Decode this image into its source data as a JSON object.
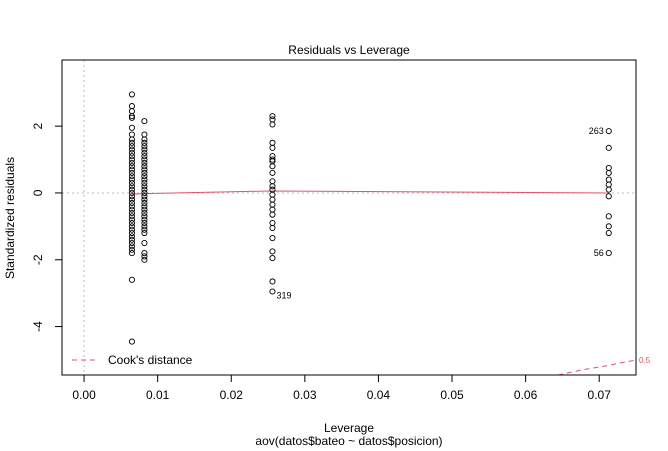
{
  "chart_data": {
    "type": "scatter",
    "title": "Residuals vs Leverage",
    "xlabel": "Leverage",
    "ylabel": "Standardized residuals",
    "subtitle": "aov(datos$bateo ~ datos$posicion)",
    "xlim": [
      -0.003,
      0.075
    ],
    "ylim": [
      -5.45,
      3.98
    ],
    "x_ticks": [
      0.0,
      0.01,
      0.02,
      0.03,
      0.04,
      0.05,
      0.06,
      0.07
    ],
    "x_tick_labels": [
      "0.00",
      "0.01",
      "0.02",
      "0.03",
      "0.04",
      "0.05",
      "0.06",
      "0.07"
    ],
    "y_ticks": [
      -4,
      -2,
      0,
      2
    ],
    "y_tick_labels": [
      "-4",
      "-2",
      "0",
      "2"
    ],
    "colors": {
      "points": "#000000",
      "smooth": "#DF536B",
      "cook": "#DF536B",
      "reference": "#BEBEBE"
    },
    "series": [
      {
        "x": 0.0065,
        "y": [
          2.95,
          2.6,
          2.45,
          2.3,
          2.25,
          1.95,
          1.75,
          1.6,
          1.5,
          1.4,
          1.3,
          1.2,
          1.1,
          1.0,
          0.9,
          0.8,
          0.7,
          0.6,
          0.5,
          0.4,
          0.3,
          0.2,
          0.1,
          0.0,
          -0.1,
          -0.2,
          -0.3,
          -0.4,
          -0.5,
          -0.6,
          -0.7,
          -0.8,
          -0.9,
          -1.0,
          -1.1,
          -1.2,
          -1.3,
          -1.4,
          -1.5,
          -1.6,
          -1.7,
          -1.8,
          -2.6,
          -4.45
        ]
      },
      {
        "x": 0.0082,
        "y": [
          2.15,
          1.75,
          1.6,
          1.5,
          1.4,
          1.3,
          1.2,
          1.1,
          1.0,
          0.9,
          0.8,
          0.7,
          0.6,
          0.5,
          0.4,
          0.3,
          0.2,
          0.1,
          0.0,
          -0.1,
          -0.2,
          -0.3,
          -0.4,
          -0.5,
          -0.6,
          -0.7,
          -0.8,
          -0.9,
          -1.0,
          -1.1,
          -1.2,
          -1.5,
          -1.8,
          -1.9,
          -2.0
        ]
      },
      {
        "x": 0.0256,
        "y": [
          2.3,
          2.2,
          2.05,
          1.5,
          1.35,
          1.1,
          1.0,
          0.95,
          0.8,
          0.6,
          0.35,
          0.2,
          0.1,
          -0.05,
          -0.2,
          -0.35,
          -0.5,
          -0.65,
          -0.9,
          -1.05,
          -1.35,
          -1.75,
          -1.95,
          -2.65,
          -2.95
        ]
      },
      {
        "x": 0.0713,
        "y": [
          1.85,
          1.35,
          0.75,
          0.6,
          0.4,
          0.25,
          0.1,
          -0.1,
          -0.7,
          -1.0,
          -1.2,
          -1.8
        ]
      }
    ],
    "point_labels": [
      {
        "text": "263",
        "x": 0.0713,
        "y": 1.85,
        "side": "left"
      },
      {
        "text": "56",
        "x": 0.0713,
        "y": -1.8,
        "side": "left"
      },
      {
        "text": "319",
        "x": 0.0256,
        "y": -2.95,
        "side": "right"
      }
    ],
    "smooth_line": {
      "x": [
        0.0065,
        0.0082,
        0.0256,
        0.0713
      ],
      "y": [
        -0.04,
        -0.02,
        0.06,
        0.0
      ]
    },
    "cook_contour": {
      "level_label": "0.5",
      "x": [
        0.0644,
        0.0676,
        0.0708,
        0.075
      ],
      "y": [
        -5.45,
        -5.3,
        -5.18,
        -5.0
      ]
    },
    "legend": {
      "position": "bottom-left",
      "label": "Cook's distance"
    }
  }
}
